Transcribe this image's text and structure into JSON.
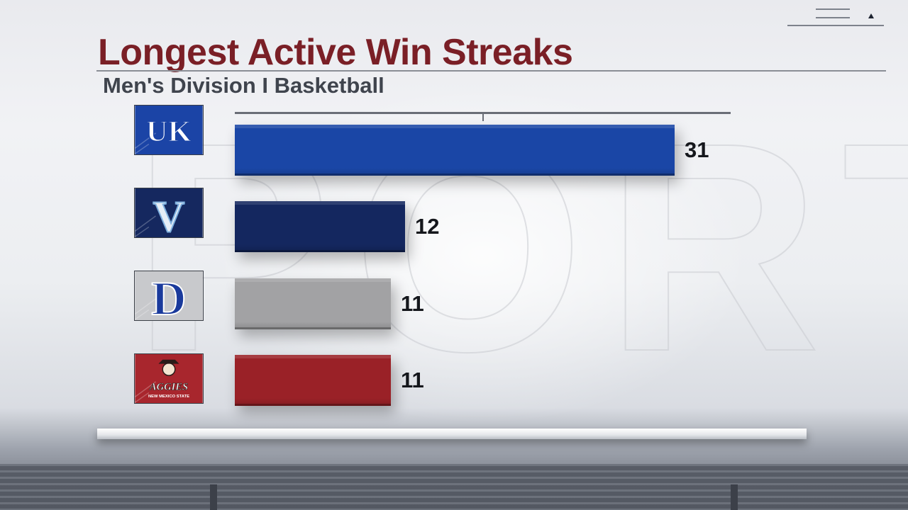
{
  "header": {
    "title": "Longest Active Win Streaks",
    "subtitle": "Men's Division I Basketball"
  },
  "chart_data": {
    "type": "bar",
    "orientation": "horizontal",
    "title": "Longest Active Win Streaks",
    "subtitle": "Men's Division I Basketball",
    "xlabel": "",
    "ylabel": "",
    "xlim": [
      0,
      35
    ],
    "grid": false,
    "legend": "none",
    "categories": [
      "Kentucky",
      "Villanova",
      "Duke",
      "New Mexico State"
    ],
    "values": [
      31,
      12,
      11,
      11
    ],
    "value_labels": [
      "31",
      "12",
      "11",
      "11"
    ],
    "colors": [
      "#1a46a6",
      "#14275f",
      "#a2a2a4",
      "#9a2127"
    ],
    "logos": [
      {
        "team": "Kentucky",
        "icon": "kentucky-uk-logo-icon",
        "text": "UK",
        "bg": "#1b44a6"
      },
      {
        "team": "Villanova",
        "icon": "villanova-v-logo-icon",
        "text": "V",
        "bg": "#15285f"
      },
      {
        "team": "Duke",
        "icon": "duke-d-logo-icon",
        "text": "D",
        "bg": "#c8c9cc"
      },
      {
        "team": "New Mexico State",
        "icon": "nmsu-aggies-logo-icon",
        "text": "AGGIES",
        "subtext": "NEW MEXICO STATE",
        "bg": "#a8262d"
      }
    ]
  }
}
